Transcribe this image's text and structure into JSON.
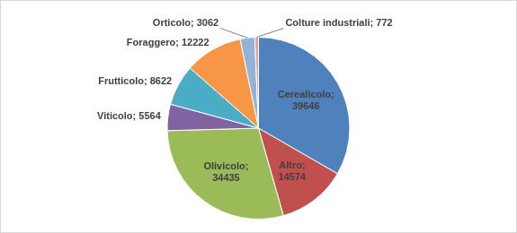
{
  "chart_data": {
    "type": "pie",
    "categories": [
      "Cerealicolo",
      "Altro",
      "Olivicolo",
      "Viticolo",
      "Frutticolo",
      "Foraggero",
      "Orticolo",
      "Colture industriali"
    ],
    "values": [
      39646,
      14574,
      34435,
      5564,
      8622,
      12222,
      3062,
      772
    ],
    "value_labels": [
      "Cerealicolo; 39646",
      "Altro; 14574",
      "Olivicolo; 34435",
      "Viticolo; 5564",
      "Frutticolo; 8622",
      "Foraggero; 12222",
      "Orticolo; 3062",
      "Colture industriali; 772"
    ],
    "colors": [
      "#4f81bd",
      "#c0504d",
      "#9bbb59",
      "#8064a2",
      "#4bacc6",
      "#f79646",
      "#95b3d7",
      "#e6a0a0"
    ],
    "data_labels": true
  }
}
